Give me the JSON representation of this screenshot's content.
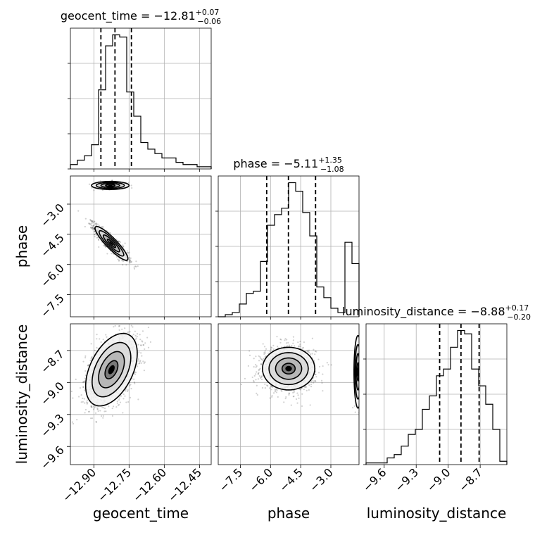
{
  "chart_data": {
    "type": "corner",
    "parameters": [
      "geocent_time",
      "phase",
      "luminosity_distance"
    ],
    "axis_labels": {
      "geocent_time": "geocent_time",
      "phase": "phase",
      "luminosity_distance": "luminosity_distance"
    },
    "ranges": {
      "geocent_time": [
        -13.0,
        -12.4
      ],
      "phase": [
        -8.6,
        -1.6
      ],
      "luminosity_distance": [
        -9.77,
        -8.45
      ]
    },
    "ticks": {
      "geocent_time": [
        -12.9,
        -12.75,
        -12.6,
        -12.45
      ],
      "phase": [
        -7.5,
        -6.0,
        -4.5,
        -3.0
      ],
      "luminosity_distance": [
        -9.6,
        -9.3,
        -9.0,
        -8.7
      ]
    },
    "tick_labels": {
      "geocent_time": [
        "−12.90",
        "−12.75",
        "−12.60",
        "−12.45"
      ],
      "phase": [
        "−7.5",
        "−6.0",
        "−4.5",
        "−3.0"
      ],
      "luminosity_distance": [
        "−9.6",
        "−9.3",
        "−9.0",
        "−8.7"
      ]
    },
    "titles": {
      "geocent_time": {
        "prefix": "geocent_time = −12.81",
        "sup": "+0.07",
        "sub": "−0.06"
      },
      "phase": {
        "prefix": "phase = −5.11",
        "sup": "+1.35",
        "sub": "−1.08"
      },
      "luminosity_distance": {
        "prefix": "luminosity_distance = −8.88",
        "sup": "+0.17",
        "sub": "−0.20"
      }
    },
    "quantiles": {
      "geocent_time": [
        -12.87,
        -12.81,
        -12.74
      ],
      "phase": [
        -6.19,
        -5.11,
        -3.76
      ],
      "luminosity_distance": [
        -9.08,
        -8.88,
        -8.71
      ]
    },
    "histograms": {
      "geocent_time": {
        "edges": [
          -13.0,
          -12.97,
          -12.94,
          -12.91,
          -12.88,
          -12.85,
          -12.82,
          -12.79,
          -12.76,
          -12.73,
          -12.7,
          -12.67,
          -12.64,
          -12.61,
          -12.58,
          -12.55,
          -12.52,
          -12.49,
          -12.46,
          -12.43,
          -12.4
        ],
        "counts": [
          2,
          4,
          6,
          11,
          36,
          56,
          61,
          60,
          35,
          24,
          12,
          9,
          7,
          5,
          5,
          3,
          2,
          2,
          1,
          1
        ]
      },
      "phase": {
        "edges": [
          -8.6,
          -8.25,
          -7.9,
          -7.55,
          -7.2,
          -6.85,
          -6.5,
          -6.15,
          -5.8,
          -5.45,
          -5.1,
          -4.75,
          -4.4,
          -4.05,
          -3.7,
          -3.35,
          -3.0,
          -2.65,
          -2.3,
          -1.95,
          -1.6
        ],
        "counts": [
          0,
          1,
          2,
          6,
          11,
          12,
          26,
          43,
          48,
          51,
          63,
          59,
          49,
          38,
          14,
          9,
          4,
          2,
          35,
          25
        ]
      },
      "luminosity_distance": {
        "edges": [
          -9.77,
          -9.704,
          -9.638,
          -9.572,
          -9.506,
          -9.44,
          -9.374,
          -9.308,
          -9.242,
          -9.176,
          -9.11,
          -9.044,
          -8.978,
          -8.912,
          -8.846,
          -8.78,
          -8.714,
          -8.648,
          -8.582,
          -8.516,
          -8.45
        ],
        "counts": [
          1,
          1,
          1,
          4,
          6,
          11,
          18,
          21,
          33,
          41,
          53,
          57,
          70,
          80,
          78,
          57,
          47,
          36,
          21,
          2
        ]
      }
    },
    "contour_levels_sigma": [
      0.5,
      1.0,
      1.5,
      2.0
    ],
    "pairs": [
      {
        "x": "geocent_time",
        "y": "phase",
        "mode_a": {
          "mean": [
            -12.825,
            -4.95
          ],
          "sd": [
            0.035,
            0.42
          ],
          "rho": -0.9,
          "weight": 0.93
        },
        "mode_b": {
          "mean": [
            -12.83,
            -2.07
          ],
          "sd": [
            0.04,
            0.1
          ],
          "rho": 0.0,
          "weight": 0.07
        }
      },
      {
        "x": "geocent_time",
        "y": "luminosity_distance",
        "mode_a": {
          "mean": [
            -12.825,
            -8.88
          ],
          "sd": [
            0.055,
            0.17
          ],
          "rho": 0.45,
          "weight": 1.0
        }
      },
      {
        "x": "phase",
        "y": "luminosity_distance",
        "mode_a": {
          "mean": [
            -5.1,
            -8.87
          ],
          "sd": [
            0.65,
            0.1
          ],
          "rho": 0.0,
          "weight": 0.93
        },
        "mode_b": {
          "mean": [
            -1.65,
            -8.9
          ],
          "sd": [
            0.1,
            0.17
          ],
          "rho": 0.0,
          "weight": 0.07
        }
      }
    ]
  }
}
